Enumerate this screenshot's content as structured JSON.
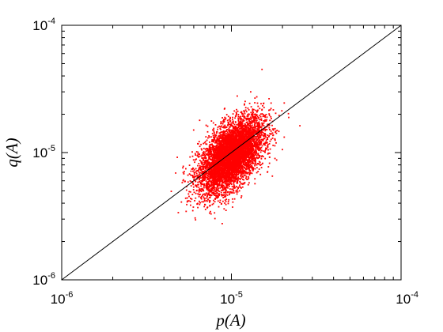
{
  "chart_data": {
    "type": "scatter",
    "title": "",
    "xlabel": "p(A)",
    "ylabel": "q(A)",
    "xscale": "log",
    "yscale": "log",
    "xlim": [
      1e-06,
      0.0001
    ],
    "ylim": [
      1e-06,
      0.0001
    ],
    "x_ticks": [
      {
        "value": 1e-06,
        "base": "10",
        "exp": "-6"
      },
      {
        "value": 1e-05,
        "base": "10",
        "exp": "-5"
      },
      {
        "value": 0.0001,
        "base": "10",
        "exp": "-4"
      }
    ],
    "y_ticks": [
      {
        "value": 1e-06,
        "base": "10",
        "exp": "-6"
      },
      {
        "value": 1e-05,
        "base": "10",
        "exp": "-5"
      },
      {
        "value": 0.0001,
        "base": "10",
        "exp": "-4"
      }
    ],
    "grid": false,
    "series": [
      {
        "kind": "scatter",
        "color": "#ff0000",
        "cluster": {
          "center_x": 1e-05,
          "center_y": 9.5e-06,
          "x_range": [
            4.4e-06,
            2.1e-05
          ],
          "y_range": [
            2.4e-06,
            2.7e-05
          ],
          "correlation": 0.55
        }
      },
      {
        "kind": "reference-line",
        "color": "#000000",
        "points": [
          [
            1e-06,
            1e-06
          ],
          [
            0.0001,
            0.0001
          ]
        ]
      }
    ]
  }
}
